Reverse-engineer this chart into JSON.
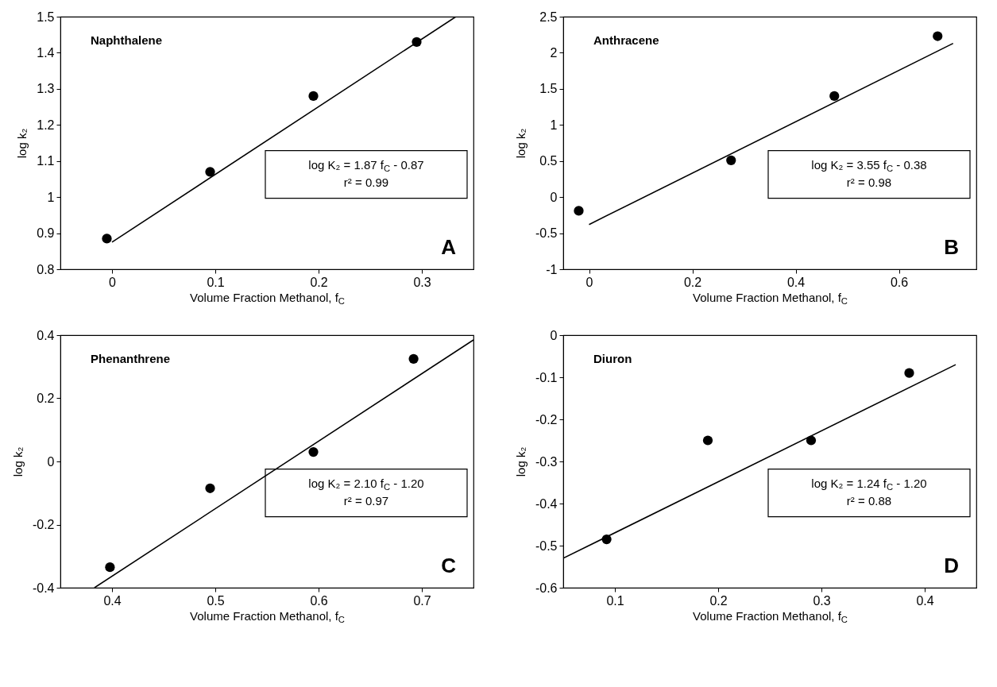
{
  "chart_data": [
    {
      "type": "scatter",
      "title": "Naphthalene",
      "xlabel": "Volume Fraction Methanol, f$_{C}$",
      "ylabel": "log k₂",
      "xlim": [
        -0.05,
        0.35
      ],
      "xticks": [
        0,
        0.1,
        0.2,
        0.3
      ],
      "ylim": [
        0.8,
        1.5
      ],
      "yticks": [
        0.8,
        0.9,
        1,
        1.1,
        1.2,
        1.3,
        1.4,
        1.5
      ],
      "marker": "circle",
      "annotations": [
        "log K₂ = 1.87 f$_{C}$ - 0.87",
        "r² = 0.99",
        "A"
      ],
      "series": [
        {
          "type": "scatter",
          "color": "#000000",
          "x": [
            -0.005,
            0.095,
            0.195,
            0.295
          ],
          "values": [
            0.885,
            1.07,
            1.28,
            1.43
          ]
        },
        {
          "type": "line",
          "color": "#000000",
          "marker": "none",
          "x": [
            0,
            0.333
          ],
          "values": [
            0.875,
            1.5
          ]
        }
      ]
    },
    {
      "type": "scatter",
      "title": "Anthracene",
      "xlabel": "Volume Fraction Methanol, f$_{C}$",
      "ylabel": "log k₂",
      "xlim": [
        -0.05,
        0.75
      ],
      "xticks": [
        0,
        0.2,
        0.4,
        0.6
      ],
      "ylim": [
        -1,
        2.5
      ],
      "yticks": [
        -1,
        -0.5,
        0,
        0.5,
        1,
        1.5,
        2,
        2.5
      ],
      "marker": "circle",
      "annotations": [
        "log K₂ = 3.55 f$_{C}$ - 0.38",
        "r² = 0.98",
        "B"
      ],
      "series": [
        {
          "type": "scatter",
          "color": "#000000",
          "x": [
            -0.02,
            0.275,
            0.475,
            0.675
          ],
          "values": [
            -0.19,
            0.51,
            1.4,
            2.23
          ]
        },
        {
          "type": "line",
          "color": "#000000",
          "marker": "none",
          "x": [
            0,
            0.705
          ],
          "values": [
            -0.38,
            2.13
          ]
        }
      ]
    },
    {
      "type": "scatter",
      "title": "Phenanthrene",
      "xlabel": "Volume Fraction Methanol, f$_{C}$",
      "ylabel": "log k₂",
      "xlim": [
        0.35,
        0.75
      ],
      "xticks": [
        0.4,
        0.5,
        0.6,
        0.7
      ],
      "ylim": [
        -0.4,
        0.4
      ],
      "yticks": [
        -0.4,
        -0.2,
        0,
        0.2,
        0.4
      ],
      "marker": "circle",
      "annotations": [
        "log K₂ = 2.10 f$_{C}$ - 1.20",
        "r² = 0.97",
        "C"
      ],
      "series": [
        {
          "type": "scatter",
          "color": "#000000",
          "x": [
            0.398,
            0.495,
            0.595,
            0.692
          ],
          "values": [
            -0.335,
            -0.085,
            0.03,
            0.325
          ]
        },
        {
          "type": "line",
          "color": "#000000",
          "marker": "none",
          "x": [
            0.383,
            0.75
          ],
          "values": [
            -0.4,
            0.385
          ]
        }
      ]
    },
    {
      "type": "scatter",
      "title": "Diuron",
      "xlabel": "Volume Fraction Methanol, f$_{C}$",
      "ylabel": "log k₂",
      "xlim": [
        0.05,
        0.45
      ],
      "xticks": [
        0.1,
        0.2,
        0.3,
        0.4
      ],
      "ylim": [
        -0.6,
        0
      ],
      "yticks": [
        -0.6,
        -0.5,
        -0.4,
        -0.3,
        -0.2,
        -0.1,
        0
      ],
      "marker": "circle",
      "annotations": [
        "log K₂ = 1.24 f$_{C}$ - 1.20",
        "r² = 0.88",
        "D"
      ],
      "series": [
        {
          "type": "scatter",
          "color": "#000000",
          "x": [
            0.092,
            0.19,
            0.29,
            0.385
          ],
          "values": [
            -0.485,
            -0.25,
            -0.25,
            -0.09
          ]
        },
        {
          "type": "line",
          "color": "#000000",
          "marker": "none",
          "x": [
            0.05,
            0.43
          ],
          "values": [
            -0.53,
            -0.07
          ]
        }
      ]
    }
  ]
}
